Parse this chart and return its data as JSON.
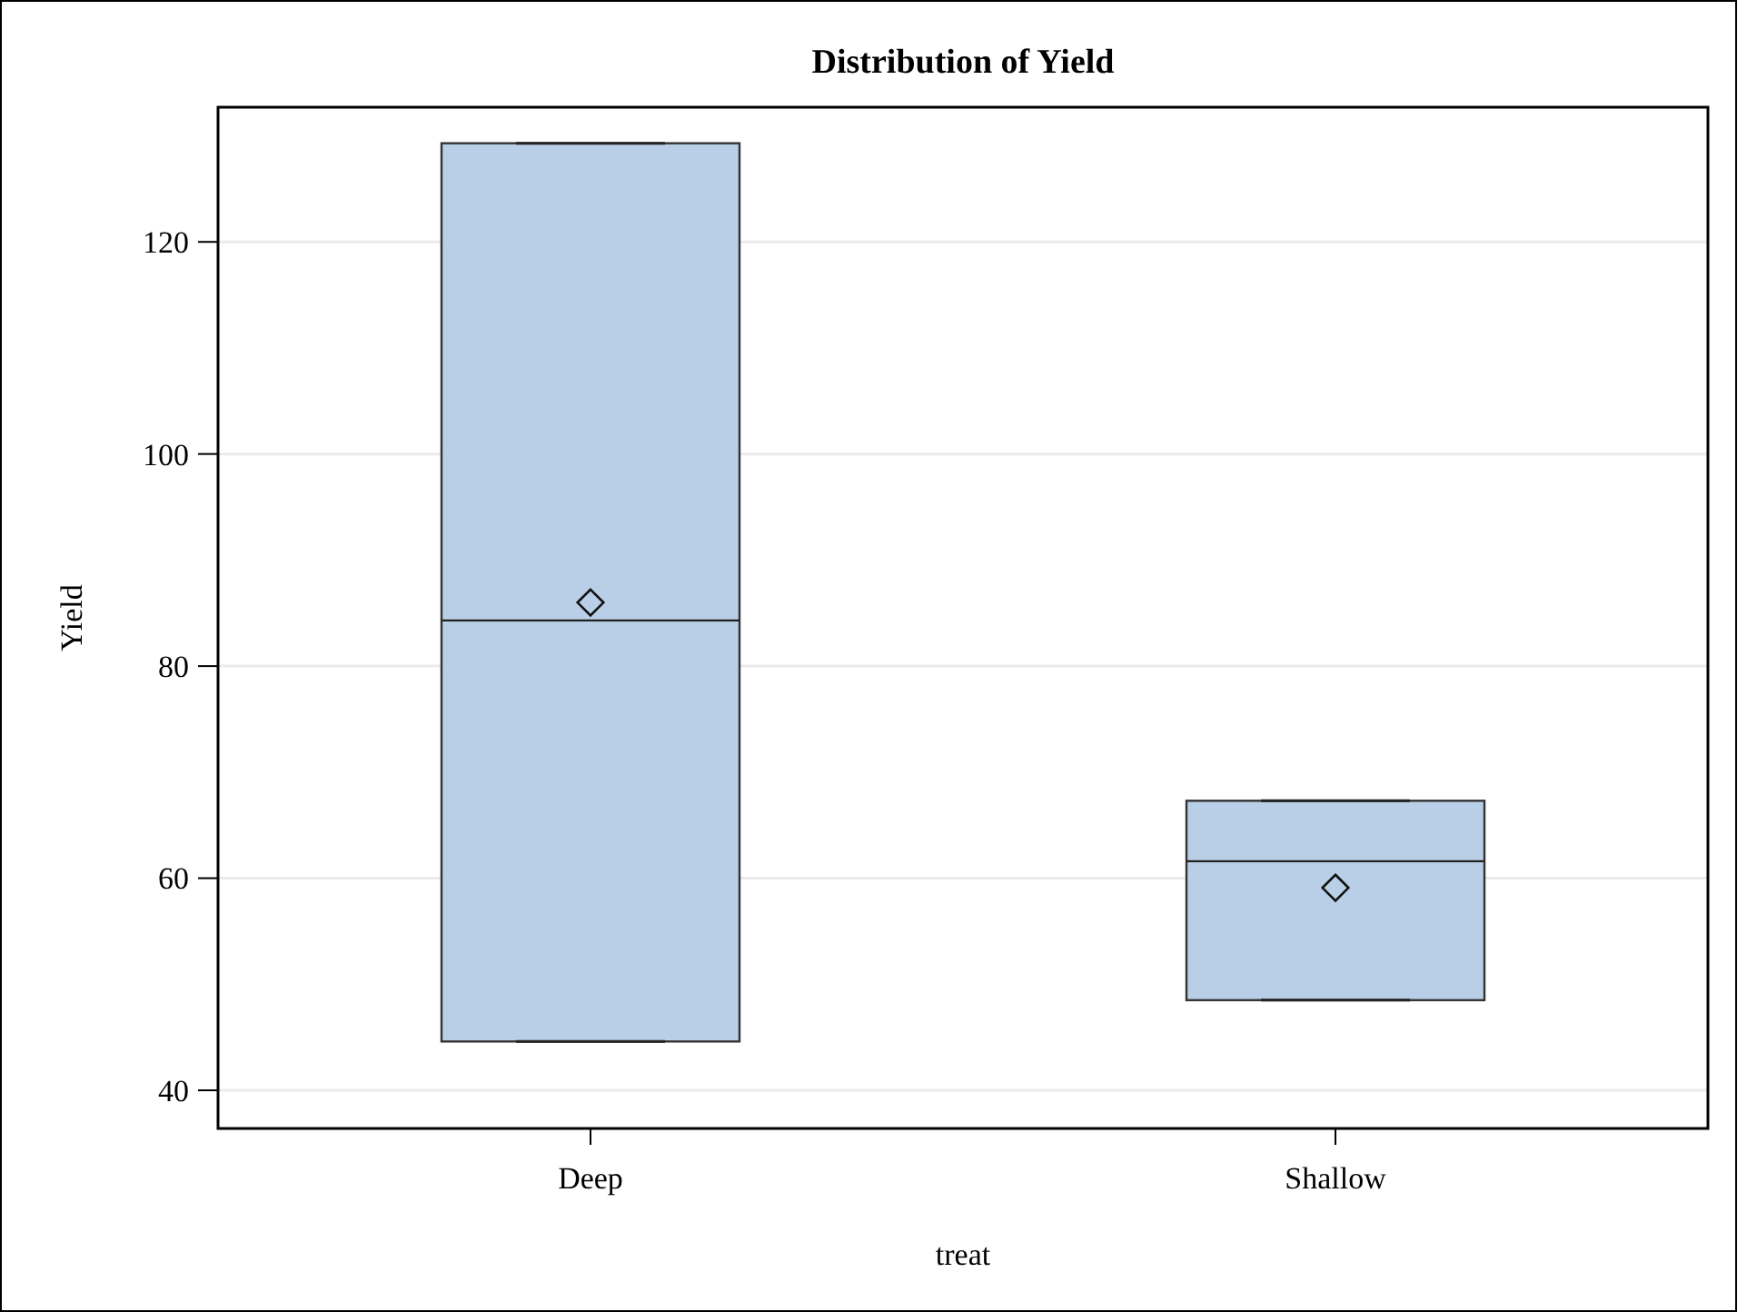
{
  "chart_data": {
    "type": "box",
    "title": "Distribution of Yield",
    "xlabel": "treat",
    "ylabel": "Yield",
    "categories": [
      "Deep",
      "Shallow"
    ],
    "series": [
      {
        "color": "#b9cfe7",
        "boxes": [
          {
            "low": 44.6,
            "q1": 44.6,
            "median": 84.3,
            "q3": 129.3,
            "high": 129.3,
            "mean": 86.0
          },
          {
            "low": 48.5,
            "q1": 48.5,
            "median": 61.6,
            "q3": 67.3,
            "high": 67.3,
            "mean": 59.1
          }
        ]
      }
    ],
    "ylim": [
      36.4,
      132.7
    ],
    "yticks": [
      40,
      60,
      80,
      100,
      120
    ],
    "grid": "y",
    "marker": "diamond"
  }
}
